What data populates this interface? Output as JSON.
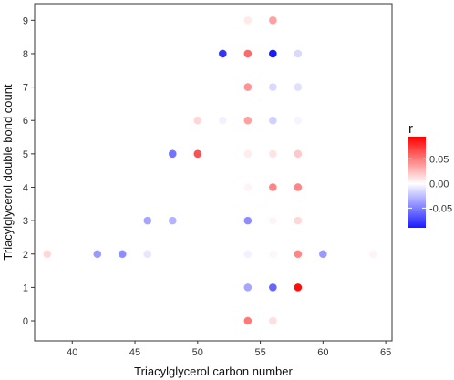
{
  "chart_data": {
    "type": "scatter",
    "title": "",
    "xlabel": "Triacylglycerol carbon number",
    "ylabel": "Triacylglycerol double bond count",
    "xlim": [
      37,
      65.5
    ],
    "ylim": [
      -0.6,
      9.5
    ],
    "xticks": [
      "40",
      "45",
      "50",
      "55",
      "60",
      "65"
    ],
    "yticks": [
      "0",
      "1",
      "2",
      "3",
      "4",
      "5",
      "6",
      "7",
      "8",
      "9"
    ],
    "grid": false,
    "legend": {
      "title": "r",
      "placement": "right",
      "range": [
        -0.09,
        0.095
      ],
      "ticks": [
        {
          "value": 0.05,
          "label": "0.05"
        },
        {
          "value": 0.0,
          "label": "0.00"
        },
        {
          "value": -0.05,
          "label": "-0.05"
        }
      ],
      "colors": {
        "low": "#1a1aff",
        "mid": "#ffffff",
        "high": "#ff0000"
      }
    },
    "points": [
      {
        "x": 54,
        "y": 9,
        "r": 0.008
      },
      {
        "x": 56,
        "y": 9,
        "r": 0.035
      },
      {
        "x": 52,
        "y": 8,
        "r": -0.08
      },
      {
        "x": 54,
        "y": 8,
        "r": 0.055
      },
      {
        "x": 56,
        "y": 8,
        "r": -0.09
      },
      {
        "x": 58,
        "y": 8,
        "r": -0.015
      },
      {
        "x": 54,
        "y": 7,
        "r": 0.04
      },
      {
        "x": 56,
        "y": 7,
        "r": -0.015
      },
      {
        "x": 58,
        "y": 7,
        "r": -0.012
      },
      {
        "x": 50,
        "y": 6,
        "r": 0.015
      },
      {
        "x": 52,
        "y": 6,
        "r": -0.005
      },
      {
        "x": 54,
        "y": 6,
        "r": 0.035
      },
      {
        "x": 56,
        "y": 6,
        "r": -0.018
      },
      {
        "x": 58,
        "y": 6,
        "r": -0.004
      },
      {
        "x": 48,
        "y": 5,
        "r": -0.055
      },
      {
        "x": 50,
        "y": 5,
        "r": 0.065
      },
      {
        "x": 54,
        "y": 5,
        "r": 0.007
      },
      {
        "x": 56,
        "y": 5,
        "r": 0.01
      },
      {
        "x": 58,
        "y": 5,
        "r": 0.02
      },
      {
        "x": 54,
        "y": 4,
        "r": 0.004
      },
      {
        "x": 56,
        "y": 4,
        "r": 0.045
      },
      {
        "x": 58,
        "y": 4,
        "r": 0.045
      },
      {
        "x": 46,
        "y": 3,
        "r": -0.035
      },
      {
        "x": 48,
        "y": 3,
        "r": -0.03
      },
      {
        "x": 54,
        "y": 3,
        "r": -0.045
      },
      {
        "x": 56,
        "y": 3,
        "r": 0.004
      },
      {
        "x": 58,
        "y": 3,
        "r": 0.015
      },
      {
        "x": 38,
        "y": 2,
        "r": 0.015
      },
      {
        "x": 42,
        "y": 2,
        "r": -0.04
      },
      {
        "x": 44,
        "y": 2,
        "r": -0.045
      },
      {
        "x": 46,
        "y": 2,
        "r": -0.01
      },
      {
        "x": 54,
        "y": 2,
        "r": -0.005
      },
      {
        "x": 56,
        "y": 2,
        "r": 0.003
      },
      {
        "x": 58,
        "y": 2,
        "r": 0.045
      },
      {
        "x": 60,
        "y": 2,
        "r": -0.04
      },
      {
        "x": 64,
        "y": 2,
        "r": 0.004
      },
      {
        "x": 54,
        "y": 1,
        "r": -0.035
      },
      {
        "x": 56,
        "y": 1,
        "r": -0.06
      },
      {
        "x": 58,
        "y": 1,
        "r": 0.09
      },
      {
        "x": 54,
        "y": 0,
        "r": 0.05
      },
      {
        "x": 56,
        "y": 0,
        "r": 0.012
      }
    ]
  }
}
